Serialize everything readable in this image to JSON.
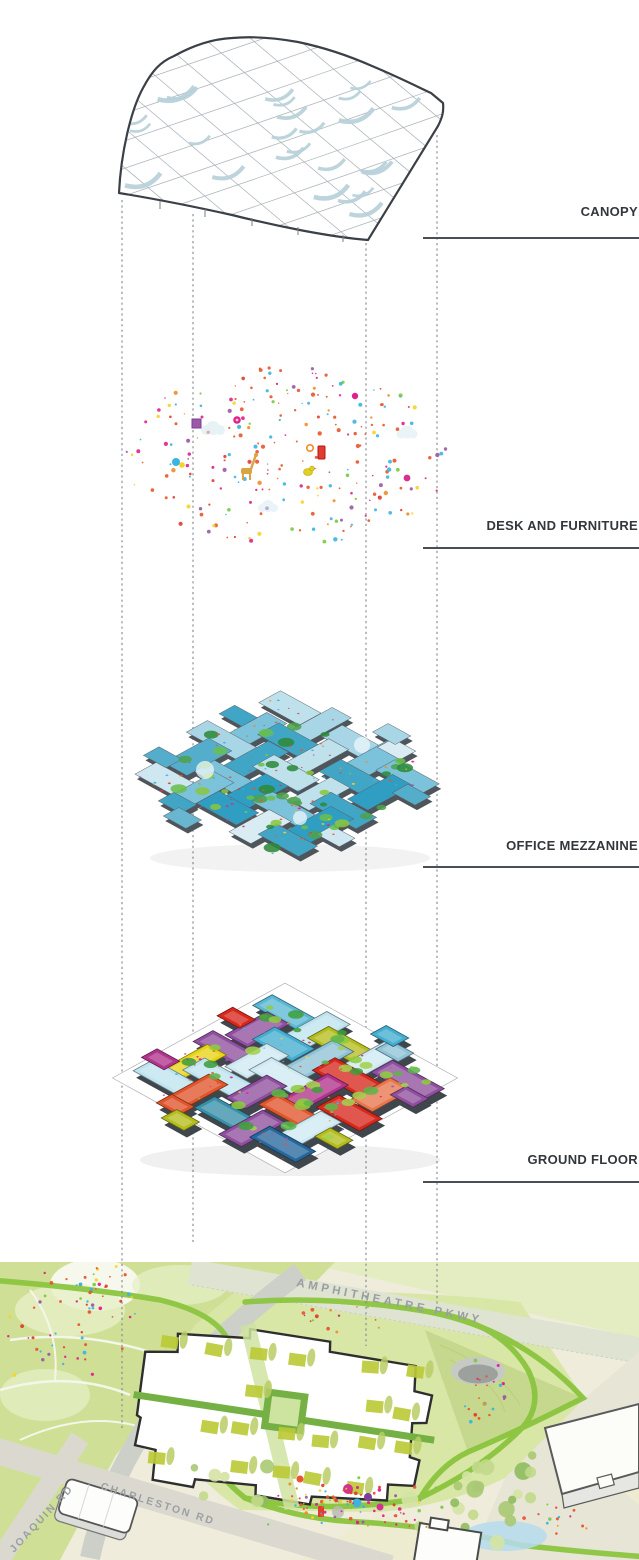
{
  "labels": {
    "canopy": "CANOPY",
    "desks": "DESK AND FURNITURE",
    "mezzanine": "OFFICE MEZZANINE",
    "ground": "GROUND FLOOR"
  },
  "site": {
    "road_labels": {
      "amphitheatre": "AMPHITHEATRE PKWY",
      "charleston": "CHARLESTON RD",
      "joaquin": "JOAQUIN RD"
    }
  },
  "palette": {
    "rule": "#4a4f54",
    "label_color": "#33373c",
    "guide": "#82878e",
    "canopy_outline": "#3b4046",
    "canopy_grid": "#a9b0b8",
    "canopy_accent": "#b7d0da",
    "dots": [
      "#e8552e",
      "#e8552e",
      "#e8552e",
      "#e03c31",
      "#e0218a",
      "#3bb4e0",
      "#3bb4e0",
      "#f5d327",
      "#9b59a6",
      "#f08c28",
      "#e8552e",
      "#7ac943",
      "#e0218a"
    ],
    "mezz_plates": [
      "#cfe7f0",
      "#a9d6e6",
      "#7cc2da",
      "#54aecb",
      "#2f9ec2",
      "#bee1ec",
      "#8fcadd",
      "#41a6c6",
      "#d9ecf3",
      "#68b6d0"
    ],
    "mezz_trees": [
      "#4da24d",
      "#6abf4b",
      "#8bc53f",
      "#2e8b3a"
    ],
    "ground_trays": [
      "#2f9ec2",
      "#2f9ec2",
      "#2f9ec2",
      "#45aed0",
      "#45aed0",
      "#45aed0",
      "#bfe4ef",
      "#bfe4ef",
      "#bfe4ef",
      "#8fc3d6",
      "#d7281d",
      "#d7281d",
      "#e0552b",
      "#e0552b",
      "#e8764e",
      "#e8d416",
      "#e8d416",
      "#b4bd1e",
      "#b0338c",
      "#8e4f9e",
      "#27689c",
      "#5bb8d4",
      "#5bb8d4",
      "#cfe9f2",
      "#cfe9f2",
      "#3a8fa8"
    ],
    "ground_trees": [
      "#5fb54a",
      "#8fcb3f",
      "#3f9e3f",
      "#a4d14e"
    ],
    "site_trees": [
      "#a9c973",
      "#c2d98b",
      "#8ebd5d",
      "#d4e3a4"
    ],
    "greens": {
      "lawn": "#cfe096",
      "site_lawn": "#d8e6a6",
      "wedge": "#c6d88e",
      "path_green": "#8bc53f",
      "olive": "#bcca37",
      "olive_light": "#b9cc66",
      "cross": "#74b043",
      "swath": "#cfe3a2"
    },
    "road_fill": "#dbd9cf",
    "pond": "#b5dcee"
  }
}
